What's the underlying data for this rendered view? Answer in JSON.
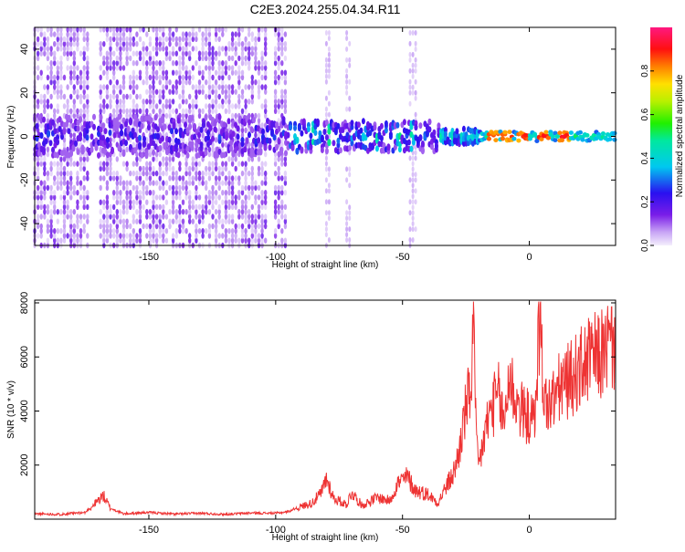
{
  "chart_data": [
    {
      "type": "heatmap",
      "title": "C2E3.2024.255.04.34.R11",
      "xlabel": "Height of straight line (km)",
      "ylabel": "Frequency (Hz)",
      "xlim": [
        -195,
        34
      ],
      "ylim": [
        -50,
        50
      ],
      "xticks": [
        -150,
        -100,
        -50,
        0
      ],
      "yticks": [
        -40,
        -20,
        0,
        20,
        40
      ],
      "colorbar": {
        "label": "Normalized spectral amplitude",
        "range": [
          0,
          1
        ],
        "ticks": [
          "0.0",
          "0.2",
          "0.4",
          "0.6",
          "0.8"
        ],
        "colormap": "rainbow (white-lilac to purple, blue, cyan, green, yellow, orange, red, magenta)"
      },
      "description_data": {
        "noise_region_km": [
          -195,
          -95
        ],
        "gap_regions_km": [
          [
            -173,
            -169
          ],
          [
            -103,
            -101
          ],
          [
            -95,
            -35
          ]
        ],
        "signal_band_hz": [
          -3,
          3
        ],
        "peak_amplitude_heights_km": [
          -14,
          -9,
          -2,
          6,
          14
        ]
      }
    },
    {
      "type": "line",
      "xlabel": "Height of straight line (km)",
      "ylabel": "SNR (10 * v/v)",
      "xlim": [
        -195,
        34
      ],
      "ylim": [
        0,
        8100
      ],
      "xticks": [
        -150,
        -100,
        -50,
        0
      ],
      "yticks": [
        2000,
        4000,
        6000,
        8000
      ],
      "color": "#ee3333",
      "points": [
        [
          -195,
          180
        ],
        [
          -185,
          160
        ],
        [
          -175,
          230
        ],
        [
          -168,
          900
        ],
        [
          -165,
          380
        ],
        [
          -160,
          180
        ],
        [
          -150,
          230
        ],
        [
          -140,
          170
        ],
        [
          -130,
          200
        ],
        [
          -120,
          160
        ],
        [
          -110,
          210
        ],
        [
          -100,
          200
        ],
        [
          -95,
          260
        ],
        [
          -90,
          480
        ],
        [
          -86,
          600
        ],
        [
          -82,
          980
        ],
        [
          -80,
          1550
        ],
        [
          -77,
          780
        ],
        [
          -72,
          560
        ],
        [
          -70,
          1020
        ],
        [
          -66,
          520
        ],
        [
          -60,
          820
        ],
        [
          -55,
          700
        ],
        [
          -52,
          1350
        ],
        [
          -48,
          1600
        ],
        [
          -45,
          1100
        ],
        [
          -40,
          950
        ],
        [
          -36,
          620
        ],
        [
          -33,
          1200
        ],
        [
          -30,
          1700
        ],
        [
          -28,
          2400
        ],
        [
          -25,
          4200
        ],
        [
          -23,
          5000
        ],
        [
          -22,
          8000
        ],
        [
          -21,
          3000
        ],
        [
          -20,
          2000
        ],
        [
          -17,
          3500
        ],
        [
          -15,
          4200
        ],
        [
          -12,
          4700
        ],
        [
          -10,
          3600
        ],
        [
          -8,
          5500
        ],
        [
          -5,
          4400
        ],
        [
          -2,
          4000
        ],
        [
          2,
          3700
        ],
        [
          4,
          7600
        ],
        [
          6,
          4500
        ],
        [
          8,
          4300
        ],
        [
          12,
          5000
        ],
        [
          16,
          5300
        ],
        [
          20,
          5700
        ],
        [
          24,
          6100
        ],
        [
          28,
          6200
        ],
        [
          31,
          6600
        ],
        [
          34,
          6650
        ]
      ]
    }
  ],
  "colors": {
    "signal_line": "#ee3333",
    "axis": "#000000"
  }
}
